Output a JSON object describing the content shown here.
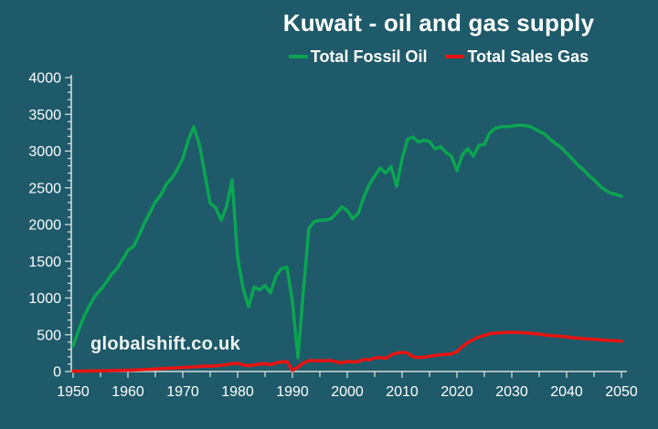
{
  "chart": {
    "watermark": "globalshift.co.uk"
  },
  "chart_data": {
    "type": "line",
    "title": "Kuwait - oil and gas supply",
    "xlabel": "",
    "ylabel": "",
    "xlim": [
      1950,
      2050
    ],
    "ylim": [
      0,
      4000
    ],
    "x_start": 1950,
    "x_step": 1,
    "x_major_ticks": [
      1950,
      1960,
      1970,
      1980,
      1990,
      2000,
      2010,
      2020,
      2030,
      2040,
      2050
    ],
    "x_minor_step": 5,
    "y_major_ticks": [
      0,
      500,
      1000,
      1500,
      2000,
      2500,
      3000,
      3500,
      4000
    ],
    "y_minor_step": 100,
    "grid": false,
    "legend_position": "top-center",
    "background_color": "#1e5a69",
    "axis_color": "#d4dcdc",
    "text_color": "#ffffff",
    "series": [
      {
        "name": "Total Fossil Oil",
        "color": "#0ba551",
        "values": [
          350,
          560,
          750,
          900,
          1030,
          1110,
          1210,
          1320,
          1400,
          1520,
          1650,
          1700,
          1850,
          2020,
          2160,
          2310,
          2400,
          2550,
          2630,
          2750,
          2900,
          3150,
          3330,
          3100,
          2700,
          2290,
          2230,
          2060,
          2250,
          2610,
          1550,
          1130,
          880,
          1150,
          1110,
          1170,
          1070,
          1300,
          1400,
          1420,
          950,
          190,
          1100,
          1950,
          2040,
          2060,
          2060,
          2080,
          2150,
          2240,
          2190,
          2080,
          2150,
          2370,
          2540,
          2660,
          2770,
          2700,
          2790,
          2520,
          2900,
          3160,
          3190,
          3120,
          3150,
          3130,
          3030,
          3060,
          2980,
          2930,
          2730,
          2950,
          3030,
          2930,
          3080,
          3090,
          3250,
          3310,
          3330,
          3330,
          3340,
          3350,
          3350,
          3340,
          3310,
          3270,
          3230,
          3160,
          3100,
          3050,
          2970,
          2900,
          2810,
          2750,
          2670,
          2610,
          2530,
          2470,
          2430,
          2410,
          2385
        ]
      },
      {
        "name": "Total Sales Gas",
        "color": "#e81410",
        "values": [
          5,
          5,
          6,
          7,
          8,
          9,
          10,
          12,
          14,
          16,
          18,
          20,
          23,
          26,
          30,
          34,
          38,
          42,
          46,
          50,
          55,
          58,
          62,
          68,
          75,
          72,
          78,
          85,
          95,
          105,
          112,
          90,
          80,
          90,
          100,
          105,
          95,
          115,
          130,
          135,
          15,
          60,
          115,
          148,
          148,
          145,
          148,
          150,
          130,
          118,
          137,
          130,
          135,
          165,
          158,
          185,
          190,
          178,
          225,
          250,
          260,
          250,
          200,
          190,
          195,
          207,
          219,
          227,
          232,
          240,
          270,
          340,
          395,
          435,
          470,
          490,
          515,
          522,
          528,
          532,
          534,
          530,
          528,
          522,
          515,
          509,
          497,
          490,
          484,
          478,
          472,
          460,
          453,
          447,
          442,
          438,
          431,
          426,
          422,
          418,
          414
        ]
      }
    ]
  }
}
